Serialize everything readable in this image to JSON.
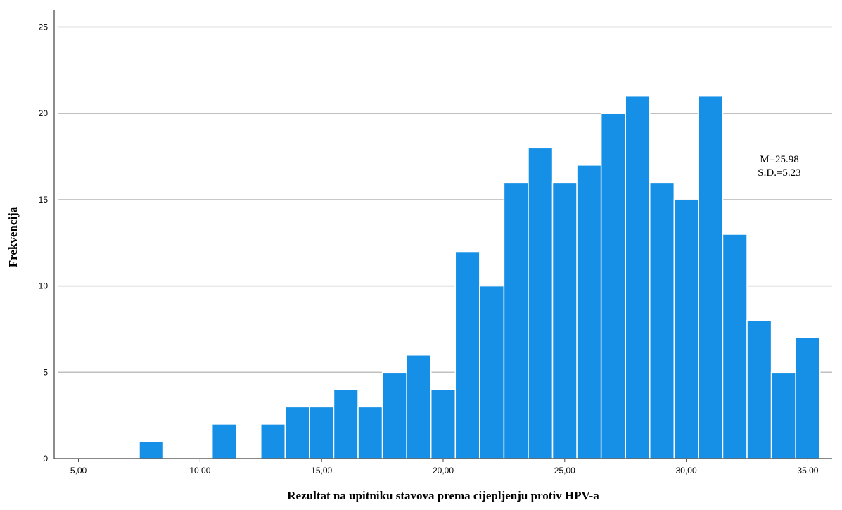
{
  "chart_data": {
    "type": "bar",
    "subtype": "histogram",
    "xlabel": "Rezultat na upitniku stavova prema cijepljenju protiv HPV-a",
    "ylabel": "Frekvencija",
    "xlim": [
      4,
      36
    ],
    "ylim": [
      0,
      26
    ],
    "x_ticks": [
      5,
      10,
      15,
      20,
      25,
      30,
      35
    ],
    "x_tick_labels": [
      "5,00",
      "10,00",
      "15,00",
      "20,00",
      "25,00",
      "30,00",
      "35,00"
    ],
    "y_ticks": [
      0,
      5,
      10,
      15,
      20,
      25
    ],
    "y_tick_labels": [
      "0",
      "5",
      "10",
      "15",
      "20",
      "25"
    ],
    "bin_width": 1,
    "bins": [
      {
        "center": 8,
        "count": 1
      },
      {
        "center": 11,
        "count": 2
      },
      {
        "center": 13,
        "count": 2
      },
      {
        "center": 14,
        "count": 3
      },
      {
        "center": 15,
        "count": 3
      },
      {
        "center": 16,
        "count": 4
      },
      {
        "center": 17,
        "count": 3
      },
      {
        "center": 18,
        "count": 5
      },
      {
        "center": 19,
        "count": 6
      },
      {
        "center": 20,
        "count": 4
      },
      {
        "center": 21,
        "count": 12
      },
      {
        "center": 22,
        "count": 10
      },
      {
        "center": 23,
        "count": 16
      },
      {
        "center": 24,
        "count": 18
      },
      {
        "center": 25,
        "count": 16
      },
      {
        "center": 26,
        "count": 17
      },
      {
        "center": 27,
        "count": 20
      },
      {
        "center": 28,
        "count": 21
      },
      {
        "center": 29,
        "count": 16
      },
      {
        "center": 30,
        "count": 15
      },
      {
        "center": 31,
        "count": 21
      },
      {
        "center": 32,
        "count": 13
      },
      {
        "center": 33,
        "count": 8
      },
      {
        "center": 34,
        "count": 5
      },
      {
        "center": 35,
        "count": 7
      }
    ],
    "annotations": [
      "M=25.98",
      "S.D.=5.23"
    ],
    "bar_color": "#1590e6",
    "bar_edge_color": "#ffffff",
    "grid_color": "#c0c0c0",
    "axis_color": "#404040",
    "grid": true
  }
}
